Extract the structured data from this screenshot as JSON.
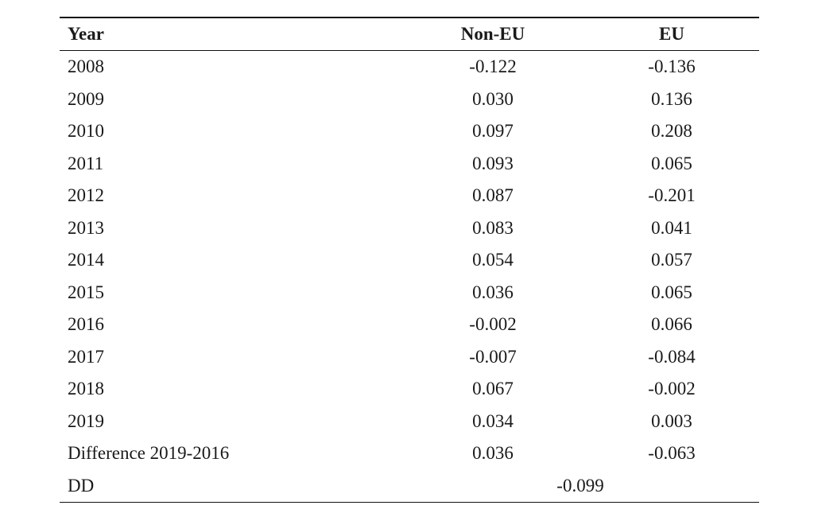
{
  "table": {
    "headers": [
      "Year",
      "Non-EU",
      "EU"
    ],
    "rows": [
      {
        "year": "2008",
        "non_eu": "-0.122",
        "eu": "-0.136"
      },
      {
        "year": "2009",
        "non_eu": "0.030",
        "eu": "0.136"
      },
      {
        "year": "2010",
        "non_eu": "0.097",
        "eu": "0.208"
      },
      {
        "year": "2011",
        "non_eu": "0.093",
        "eu": "0.065"
      },
      {
        "year": "2012",
        "non_eu": "0.087",
        "eu": "-0.201"
      },
      {
        "year": "2013",
        "non_eu": "0.083",
        "eu": "0.041"
      },
      {
        "year": "2014",
        "non_eu": "0.054",
        "eu": "0.057"
      },
      {
        "year": "2015",
        "non_eu": "0.036",
        "eu": "0.065"
      },
      {
        "year": "2016",
        "non_eu": "-0.002",
        "eu": "0.066"
      },
      {
        "year": "2017",
        "non_eu": "-0.007",
        "eu": "-0.084"
      },
      {
        "year": "2018",
        "non_eu": "0.067",
        "eu": "-0.002"
      },
      {
        "year": "2019",
        "non_eu": "0.034",
        "eu": "0.003"
      },
      {
        "year": "Difference 2019-2016",
        "non_eu": "0.036",
        "eu": "-0.063"
      }
    ],
    "dd": {
      "label": "DD",
      "value": "-0.099"
    }
  }
}
